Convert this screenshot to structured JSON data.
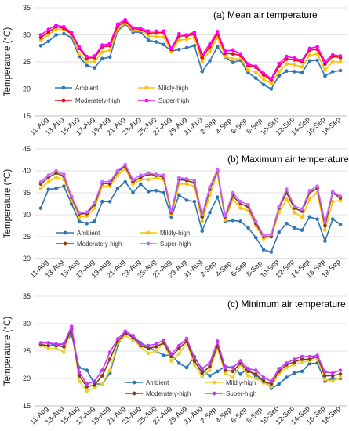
{
  "chart_data": [
    {
      "type": "line",
      "title": "(a) Mean air temperature",
      "ylabel": "Temperature (°C)",
      "ylim": [
        15,
        35
      ],
      "yticks": [
        15,
        20,
        25,
        30,
        35
      ],
      "legend_position": "inside-top-center",
      "categories": [
        "11-Aug",
        "12-Aug",
        "13-Aug",
        "14-Aug",
        "15-Aug",
        "16-Aug",
        "17-Aug",
        "18-Aug",
        "19-Aug",
        "20-Aug",
        "21-Aug",
        "22-Aug",
        "23-Aug",
        "24-Aug",
        "25-Aug",
        "26-Aug",
        "27-Aug",
        "28-Aug",
        "29-Aug",
        "30-Aug",
        "31-Aug",
        "1-Sep",
        "2-Sep",
        "3-Sep",
        "4-Sep",
        "5-Sep",
        "6-Sep",
        "7-Sep",
        "8-Sep",
        "9-Sep",
        "10-Sep",
        "11-Sep",
        "12-Sep",
        "13-Sep",
        "14-Sep",
        "15-Sep",
        "16-Sep",
        "17-Sep",
        "18-Sep",
        "19-Sep"
      ],
      "tick_labels": [
        "11-Aug",
        "13-Aug",
        "15-Aug",
        "17-Aug",
        "19-Aug",
        "21-Aug",
        "23-Aug",
        "25-Aug",
        "27-Aug",
        "29-Aug",
        "31-Aug",
        "2-Sep",
        "4-Sep",
        "6-Sep",
        "8-Sep",
        "10-Sep",
        "12-Sep",
        "14-Sep",
        "16-Sep",
        "18-Sep"
      ],
      "series": [
        {
          "name": "Ambient",
          "color": "#2e75b6",
          "values": [
            28.0,
            28.8,
            30.0,
            30.2,
            29.5,
            26.0,
            24.3,
            23.9,
            25.6,
            25.9,
            30.7,
            32.0,
            30.5,
            30.5,
            29.0,
            28.7,
            28.2,
            27.0,
            27.3,
            27.6,
            28.0,
            23.2,
            25.2,
            27.8,
            25.9,
            24.9,
            25.3,
            23.0,
            22.0,
            20.8,
            20.0,
            22.4,
            23.3,
            23.2,
            23.0,
            25.2,
            25.3,
            22.4,
            23.2,
            23.4
          ]
        },
        {
          "name": "Mildly-high",
          "color": "#ffc000",
          "values": [
            29.0,
            30.0,
            31.0,
            31.0,
            30.0,
            26.5,
            25.0,
            25.0,
            26.8,
            27.2,
            31.0,
            32.2,
            30.8,
            30.8,
            29.8,
            29.7,
            29.6,
            27.0,
            29.0,
            29.2,
            29.5,
            25.0,
            27.0,
            29.5,
            26.0,
            25.5,
            25.6,
            23.5,
            23.1,
            21.8,
            21.0,
            23.2,
            24.6,
            24.5,
            24.1,
            26.2,
            26.5,
            23.5,
            25.0,
            25.0
          ]
        },
        {
          "name": "Moderately-high",
          "color": "#ff0000",
          "values": [
            29.5,
            30.5,
            31.5,
            31.2,
            30.2,
            27.5,
            25.7,
            25.8,
            27.8,
            28.0,
            31.6,
            32.5,
            31.2,
            31.0,
            30.3,
            30.4,
            30.4,
            27.3,
            29.8,
            29.8,
            30.1,
            25.8,
            27.8,
            30.2,
            26.6,
            26.5,
            26.2,
            24.3,
            24.0,
            22.6,
            21.6,
            24.2,
            25.5,
            25.4,
            25.0,
            27.2,
            27.3,
            24.6,
            26.0,
            25.8
          ]
        },
        {
          "name": "Super-high",
          "color": "#ff00ff",
          "values": [
            30.0,
            31.0,
            31.8,
            31.5,
            30.4,
            27.8,
            26.0,
            26.1,
            28.1,
            28.4,
            32.0,
            32.8,
            31.3,
            31.2,
            30.7,
            30.7,
            30.7,
            27.5,
            30.2,
            30.0,
            30.5,
            26.3,
            28.3,
            30.6,
            27.0,
            27.2,
            26.5,
            24.6,
            24.2,
            22.9,
            21.9,
            24.7,
            26.0,
            25.7,
            25.3,
            27.5,
            27.8,
            25.1,
            26.3,
            26.1
          ]
        }
      ]
    },
    {
      "type": "line",
      "title": "(b) Maximum air temperature",
      "ylabel": "Temperature (°C)",
      "ylim": [
        20,
        45
      ],
      "yticks": [
        20,
        25,
        30,
        35,
        40,
        45
      ],
      "legend_position": "inside-bottom-left",
      "categories": [
        "11-Aug",
        "12-Aug",
        "13-Aug",
        "14-Aug",
        "15-Aug",
        "16-Aug",
        "17-Aug",
        "18-Aug",
        "19-Aug",
        "20-Aug",
        "21-Aug",
        "22-Aug",
        "23-Aug",
        "24-Aug",
        "25-Aug",
        "26-Aug",
        "27-Aug",
        "28-Aug",
        "29-Aug",
        "30-Aug",
        "31-Aug",
        "1-Sep",
        "2-Sep",
        "3-Sep",
        "4-Sep",
        "5-Sep",
        "6-Sep",
        "7-Sep",
        "8-Sep",
        "9-Sep",
        "10-Sep",
        "11-Sep",
        "12-Sep",
        "13-Sep",
        "14-Sep",
        "15-Sep",
        "16-Sep",
        "17-Sep",
        "18-Sep",
        "19-Sep"
      ],
      "tick_labels": [
        "11-Aug",
        "13-Aug",
        "15-Aug",
        "17-Aug",
        "19-Aug",
        "21-Aug",
        "23-Aug",
        "25-Aug",
        "27-Aug",
        "29-Aug",
        "31-Aug",
        "2-Sep",
        "4-Sep",
        "6-Sep",
        "8-Sep",
        "10-Sep",
        "12-Sep",
        "14-Sep",
        "16-Sep",
        "18-Sep"
      ],
      "series": [
        {
          "name": "Ambient",
          "color": "#2e75b6",
          "values": [
            31.5,
            35.8,
            36.0,
            36.5,
            32.5,
            28.5,
            28.0,
            28.5,
            33.0,
            33.0,
            36.0,
            37.5,
            35.0,
            37.0,
            35.3,
            35.5,
            35.0,
            29.5,
            34.5,
            33.3,
            33.0,
            26.3,
            30.5,
            34.0,
            28.5,
            28.7,
            28.5,
            27.0,
            24.8,
            22.0,
            21.5,
            26.0,
            28.0,
            27.0,
            26.5,
            29.5,
            29.0,
            24.0,
            29.0,
            27.8
          ]
        },
        {
          "name": "Mildly-high",
          "color": "#ffc000",
          "values": [
            36.0,
            37.5,
            38.5,
            38.0,
            33.5,
            29.5,
            29.7,
            31.5,
            36.5,
            36.5,
            39.0,
            40.5,
            37.0,
            38.0,
            38.0,
            38.5,
            38.0,
            30.0,
            37.0,
            37.0,
            36.5,
            28.5,
            34.5,
            39.5,
            28.8,
            33.5,
            31.5,
            31.0,
            27.5,
            24.5,
            25.0,
            30.5,
            33.5,
            30.5,
            29.5,
            33.5,
            35.0,
            26.5,
            33.0,
            33.2
          ]
        },
        {
          "name": "Moderately-high",
          "color": "#843c0c",
          "values": [
            37.0,
            38.5,
            39.5,
            38.8,
            34.0,
            30.2,
            30.3,
            32.3,
            37.2,
            37.0,
            39.8,
            41.0,
            37.5,
            38.5,
            39.2,
            39.0,
            38.5,
            30.5,
            38.0,
            37.8,
            37.3,
            29.5,
            35.8,
            40.0,
            29.5,
            34.3,
            32.5,
            31.8,
            28.0,
            25.0,
            25.0,
            31.5,
            35.0,
            31.5,
            30.8,
            35.0,
            36.0,
            27.5,
            35.0,
            33.8
          ]
        },
        {
          "name": "Super-high",
          "color": "#cc66ff",
          "values": [
            37.5,
            39.0,
            40.0,
            39.2,
            34.2,
            30.5,
            30.6,
            32.8,
            37.5,
            37.6,
            40.0,
            41.4,
            38.0,
            39.0,
            39.5,
            39.2,
            39.0,
            30.8,
            38.5,
            38.2,
            37.8,
            30.0,
            36.3,
            40.3,
            29.8,
            35.0,
            33.0,
            32.3,
            28.5,
            25.3,
            25.5,
            31.8,
            35.8,
            32.0,
            31.3,
            35.5,
            36.5,
            28.3,
            35.3,
            34.2
          ]
        }
      ]
    },
    {
      "type": "line",
      "title": "(c) Minimum air temperature",
      "ylabel": "Temperature (°C)",
      "ylim": [
        15,
        35
      ],
      "yticks": [
        15,
        20,
        25,
        30,
        35
      ],
      "legend_position": "inside-bottom-center",
      "categories": [
        "11-Aug",
        "12-Aug",
        "13-Aug",
        "14-Aug",
        "15-Aug",
        "16-Aug",
        "17-Aug",
        "18-Aug",
        "19-Aug",
        "20-Aug",
        "21-Aug",
        "22-Aug",
        "23-Aug",
        "24-Aug",
        "25-Aug",
        "26-Aug",
        "27-Aug",
        "28-Aug",
        "29-Aug",
        "30-Aug",
        "31-Aug",
        "1-Sep",
        "2-Sep",
        "3-Sep",
        "4-Sep",
        "5-Sep",
        "6-Sep",
        "7-Sep",
        "8-Sep",
        "9-Sep",
        "10-Sep",
        "11-Sep",
        "12-Sep",
        "13-Sep",
        "14-Sep",
        "15-Sep",
        "16-Sep",
        "17-Sep",
        "18-Sep",
        "19-Sep"
      ],
      "tick_labels": [
        "11-Aug",
        "13-Aug",
        "15-Aug",
        "17-Aug",
        "19-Aug",
        "21-Aug",
        "23-Aug",
        "25-Aug",
        "27-Aug",
        "29-Aug",
        "31-Aug",
        "2-Sep",
        "4-Sep",
        "6-Sep",
        "8-Sep",
        "10-Sep",
        "12-Sep",
        "14-Sep",
        "16-Sep",
        "18-Sep"
      ],
      "series": [
        {
          "name": "Ambient",
          "color": "#2e75b6",
          "values": [
            26.5,
            26.5,
            26.0,
            26.3,
            28.0,
            22.0,
            21.5,
            19.0,
            19.0,
            21.0,
            26.0,
            28.5,
            27.8,
            26.5,
            25.7,
            25.0,
            24.2,
            24.3,
            22.8,
            22.0,
            24.0,
            21.5,
            20.5,
            21.3,
            22.2,
            22.0,
            20.8,
            21.8,
            20.2,
            19.7,
            18.2,
            19.0,
            20.2,
            21.0,
            21.3,
            22.7,
            22.8,
            19.5,
            20.0,
            20.0
          ]
        },
        {
          "name": "Mildly-high",
          "color": "#e8d12c",
          "values": [
            26.0,
            25.5,
            25.5,
            24.8,
            29.2,
            19.5,
            17.7,
            18.3,
            19.0,
            21.5,
            26.5,
            27.8,
            27.0,
            25.8,
            24.6,
            25.0,
            26.5,
            23.2,
            24.5,
            26.5,
            22.5,
            20.3,
            21.5,
            25.5,
            21.0,
            20.2,
            22.5,
            20.5,
            20.0,
            19.2,
            18.5,
            20.8,
            22.0,
            22.5,
            23.0,
            23.2,
            23.5,
            19.8,
            19.5,
            20.2
          ]
        },
        {
          "name": "Moderately-high",
          "color": "#843c0c",
          "values": [
            26.2,
            26.0,
            26.0,
            25.8,
            29.0,
            20.5,
            18.5,
            18.8,
            20.5,
            23.5,
            26.8,
            28.2,
            27.5,
            26.0,
            25.5,
            25.8,
            26.5,
            24.0,
            25.5,
            26.8,
            23.2,
            21.0,
            22.2,
            26.0,
            21.5,
            21.3,
            22.8,
            21.3,
            20.8,
            19.5,
            19.0,
            21.3,
            22.5,
            23.0,
            23.5,
            23.5,
            24.0,
            20.5,
            20.5,
            20.8
          ]
        },
        {
          "name": "Super-high",
          "color": "#cc33ff",
          "values": [
            26.5,
            26.5,
            26.3,
            26.3,
            29.5,
            21.2,
            19.0,
            19.5,
            21.5,
            24.8,
            27.2,
            28.6,
            27.8,
            26.2,
            26.0,
            26.3,
            27.0,
            24.5,
            26.0,
            27.3,
            23.8,
            21.8,
            22.8,
            26.8,
            22.0,
            22.0,
            23.2,
            21.8,
            21.5,
            20.2,
            19.5,
            21.8,
            22.8,
            23.5,
            24.0,
            24.0,
            24.2,
            21.2,
            21.0,
            21.5
          ]
        }
      ]
    }
  ]
}
